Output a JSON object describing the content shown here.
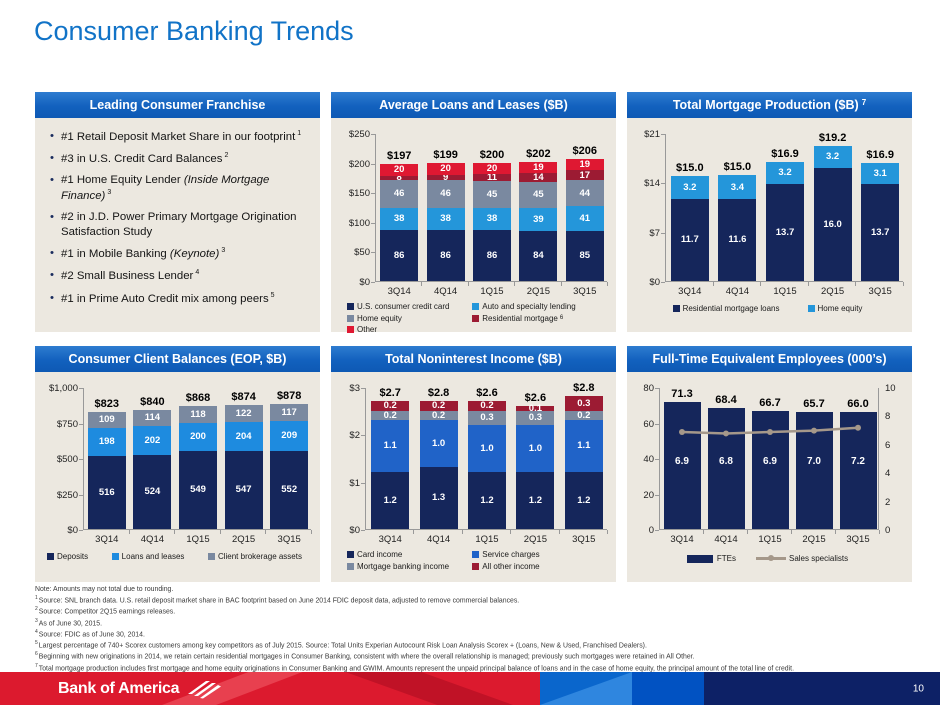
{
  "title": "Consumer Banking Trends",
  "theme": {
    "title_blue": "#1173C7",
    "panel_header_blue": "#1261BE",
    "panel_bg": "#ECE8E0",
    "palette": {
      "navy": "#15265B",
      "sky_blue": "#2496DA",
      "azure": "#1E8BDF",
      "royal_blue": "#2063C8",
      "slate_gray": "#7A89A0",
      "maroon": "#9C1B33",
      "red": "#DF1832",
      "taupe_line": "#A5988A"
    }
  },
  "franchise": {
    "header": "Leading Consumer Franchise",
    "bullets": [
      {
        "text": "#1 Retail Deposit Market Share in our footprint",
        "italic": "",
        "sup": "1"
      },
      {
        "text": "#3 in U.S. Credit Card Balances",
        "italic": "",
        "sup": "2"
      },
      {
        "text": "#1 Home Equity Lender ",
        "italic": "(Inside Mortgage Finance)",
        "sup": "3"
      },
      {
        "text": "#2 in J.D. Power Primary Mortgage Origination Satisfaction Study",
        "italic": "",
        "sup": ""
      },
      {
        "text": "#1 in Mobile Banking ",
        "italic": "(Keynote)",
        "sup": "3"
      },
      {
        "text": "#2 Small Business Lender",
        "italic": "",
        "sup": "4"
      },
      {
        "text": "#1 in Prime Auto Credit mix among peers",
        "italic": "",
        "sup": "5"
      }
    ]
  },
  "chart_data": [
    {
      "type": "bar",
      "stacked": true,
      "title": {
        "text": "Average Loans and Leases ($B)",
        "sup": ""
      },
      "categories": [
        "3Q14",
        "4Q14",
        "1Q15",
        "2Q15",
        "3Q15"
      ],
      "series": [
        {
          "name": "U.S. consumer credit card",
          "color": "#15265B",
          "values": [
            "86",
            "86",
            "86",
            "84",
            "85"
          ]
        },
        {
          "name": "Auto and specialty lending",
          "color": "#2496DA",
          "values": [
            "38",
            "38",
            "38",
            "39",
            "41"
          ]
        },
        {
          "name": "Home equity",
          "color": "#7A89A0",
          "values": [
            "46",
            "46",
            "45",
            "45",
            "44"
          ]
        },
        {
          "name": "Residential mortgage",
          "sup": "6",
          "color": "#9C1B33",
          "values": [
            "8",
            "9",
            "11",
            "14",
            "17"
          ]
        },
        {
          "name": "Other",
          "color": "#DF1832",
          "values": [
            "20",
            "20",
            "20",
            "19",
            "19"
          ]
        }
      ],
      "totals": [
        "$197",
        "$199",
        "$200",
        "$202",
        "$206"
      ],
      "ymax": 250,
      "y_ticks": [
        "$250",
        "$200",
        "$150",
        "$100",
        "$50",
        "$0"
      ],
      "legend_layout": "grid2",
      "grid": false,
      "legend_position": "bottom"
    },
    {
      "type": "bar",
      "stacked": true,
      "title": {
        "text": "Total Mortgage Production ($B)",
        "sup": "7"
      },
      "categories": [
        "3Q14",
        "4Q14",
        "1Q15",
        "2Q15",
        "3Q15"
      ],
      "series": [
        {
          "name": "Residential mortgage loans",
          "color": "#15265B",
          "values": [
            "11.7",
            "11.6",
            "13.7",
            "16.0",
            "13.7"
          ]
        },
        {
          "name": "Home equity",
          "color": "#2496DA",
          "values": [
            "3.2",
            "3.4",
            "3.2",
            "3.2",
            "3.1"
          ]
        }
      ],
      "totals": [
        "$15.0",
        "$15.0",
        "$16.9",
        "$19.2",
        "$16.9"
      ],
      "ymax": 21,
      "y_ticks": [
        "$21",
        "$14",
        "$7",
        "$0"
      ],
      "legend_layout": "row",
      "grid": false,
      "legend_position": "bottom"
    },
    {
      "type": "bar",
      "stacked": true,
      "title": {
        "text": "Consumer Client Balances (EOP, $B)",
        "sup": ""
      },
      "categories": [
        "3Q14",
        "4Q14",
        "1Q15",
        "2Q15",
        "3Q15"
      ],
      "series": [
        {
          "name": "Deposits",
          "color": "#15265B",
          "values": [
            "516",
            "524",
            "549",
            "547",
            "552"
          ]
        },
        {
          "name": "Loans and leases",
          "color": "#1E8BDF",
          "values": [
            "198",
            "202",
            "200",
            "204",
            "209"
          ]
        },
        {
          "name": "Client brokerage assets",
          "color": "#7A89A0",
          "values": [
            "109",
            "114",
            "118",
            "122",
            "117"
          ]
        }
      ],
      "totals": [
        "$823",
        "$840",
        "$868",
        "$874",
        "$878"
      ],
      "ymax": 1000,
      "y_ticks": [
        "$1,000",
        "$750",
        "$500",
        "$250",
        "$0"
      ],
      "legend_layout": "spread",
      "grid": false,
      "legend_position": "bottom"
    },
    {
      "type": "bar",
      "stacked": true,
      "title": {
        "text": "Total Noninterest Income ($B)",
        "sup": ""
      },
      "categories": [
        "3Q14",
        "4Q14",
        "1Q15",
        "2Q15",
        "3Q15"
      ],
      "series": [
        {
          "name": "Card income",
          "color": "#15265B",
          "values": [
            "1.2",
            "1.3",
            "1.2",
            "1.2",
            "1.2"
          ]
        },
        {
          "name": "Service charges",
          "color": "#2063C8",
          "values": [
            "1.1",
            "1.0",
            "1.0",
            "1.0",
            "1.1"
          ]
        },
        {
          "name": "Mortgage banking income",
          "color": "#7A89A0",
          "values": [
            "0.2",
            "0.2",
            "0.3",
            "0.3",
            "0.2"
          ]
        },
        {
          "name": "All other income",
          "color": "#9C1B33",
          "values": [
            "0.2",
            "0.2",
            "0.2",
            "0.1",
            "0.3"
          ]
        }
      ],
      "totals": [
        "$2.7",
        "$2.8",
        "$2.6",
        "$2.6",
        "$2.8"
      ],
      "ymax": 3,
      "y_ticks": [
        "$3",
        "$2",
        "$1",
        "$0"
      ],
      "legend_layout": "grid2",
      "grid": false,
      "legend_position": "bottom"
    },
    {
      "type": "bar-line",
      "stacked": false,
      "title": {
        "text": "Full-Time Equivalent Employees (000’s)",
        "sup": ""
      },
      "categories": [
        "3Q14",
        "4Q14",
        "1Q15",
        "2Q15",
        "3Q15"
      ],
      "series": [
        {
          "name": "FTEs",
          "color": "#15265B",
          "values": [
            "71.3",
            "68.4",
            "66.7",
            "65.7",
            "66.0"
          ]
        }
      ],
      "line": {
        "name": "Sales specialists",
        "color": "#A5988A",
        "values": [
          "6.9",
          "6.8",
          "6.9",
          "7.0",
          "7.2"
        ],
        "ymax": 10
      },
      "totals": [
        "71.3",
        "68.4",
        "66.7",
        "65.7",
        "66.0"
      ],
      "ymax": 80,
      "y_ticks": [
        "80",
        "60",
        "40",
        "20",
        "0"
      ],
      "y_ticks_right": [
        "10",
        "8",
        "6",
        "4",
        "2",
        "0"
      ],
      "legend_layout": "fte",
      "grid": false,
      "legend_position": "bottom"
    }
  ],
  "footnotes": [
    {
      "sup": "",
      "text": "Note: Amounts may not total due to rounding."
    },
    {
      "sup": "1",
      "text": "Source: SNL branch data. U.S. retail deposit market share in BAC footprint based on June 2014 FDIC deposit data, adjusted to remove commercial balances."
    },
    {
      "sup": "2",
      "text": "Source: Competitor 2Q15 earnings releases."
    },
    {
      "sup": "3",
      "text": "As of June 30, 2015."
    },
    {
      "sup": "4",
      "text": "Source: FDIC as of June 30, 2014."
    },
    {
      "sup": "5",
      "text": "Largest percentage of 740+ Scorex customers among key competitors as of July 2015. Source: Total Units Experian Autocount Risk Loan Analysis Scorex + (Loans, New & Used, Franchised Dealers)."
    },
    {
      "sup": "6",
      "text": "Beginning with new originations in 2014, we retain certain residential mortgages in Consumer Banking, consistent with where the overall relationship is managed; previously such mortgages were retained in All Other."
    },
    {
      "sup": "7",
      "text": "Total mortgage production includes first mortgage and home equity originations in Consumer Banking and GWIM. Amounts represent the unpaid principal balance of loans and in the case of home equity, the principal amount of the total line of credit."
    }
  ],
  "footer": {
    "logo_text": "Bank of America",
    "page_number": "10",
    "colors": {
      "red": "#DC1A2E",
      "red_dark": "#C01226",
      "red_light": "#E8404F",
      "blue_light": "#0A66CC",
      "blue_overlay": "#2F86DF",
      "blue_deep": "#0152C2",
      "navy": "#0D2166"
    }
  }
}
